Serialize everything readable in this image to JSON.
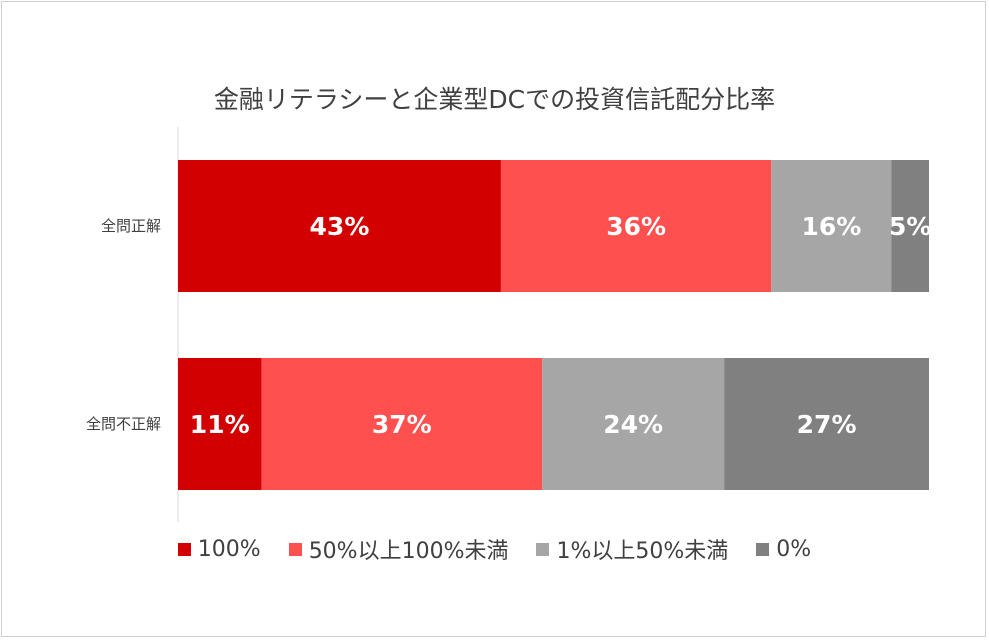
{
  "chart_data": {
    "type": "bar",
    "orientation": "horizontal",
    "stacked": "100%",
    "title": "金融リテラシーと企業型DCでの投資信託配分比率",
    "categories": [
      "全問正解",
      "全問不正解"
    ],
    "series": [
      {
        "name": "100%",
        "values": [
          43,
          11
        ],
        "labels": [
          "43%",
          "11%"
        ],
        "color": "#d20000"
      },
      {
        "name": "50%以上100%未満",
        "values": [
          36,
          37
        ],
        "labels": [
          "36%",
          "37%"
        ],
        "color": "#ff5050"
      },
      {
        "name": "1%以上50%未満",
        "values": [
          16,
          24
        ],
        "labels": [
          "16%",
          "24%"
        ],
        "color": "#a6a6a6"
      },
      {
        "name": "0%",
        "values": [
          5,
          27
        ],
        "labels": [
          "5%",
          "27%"
        ],
        "color": "#808080"
      }
    ],
    "xlim": [
      0,
      100
    ],
    "legend_position": "bottom",
    "grid": false
  }
}
